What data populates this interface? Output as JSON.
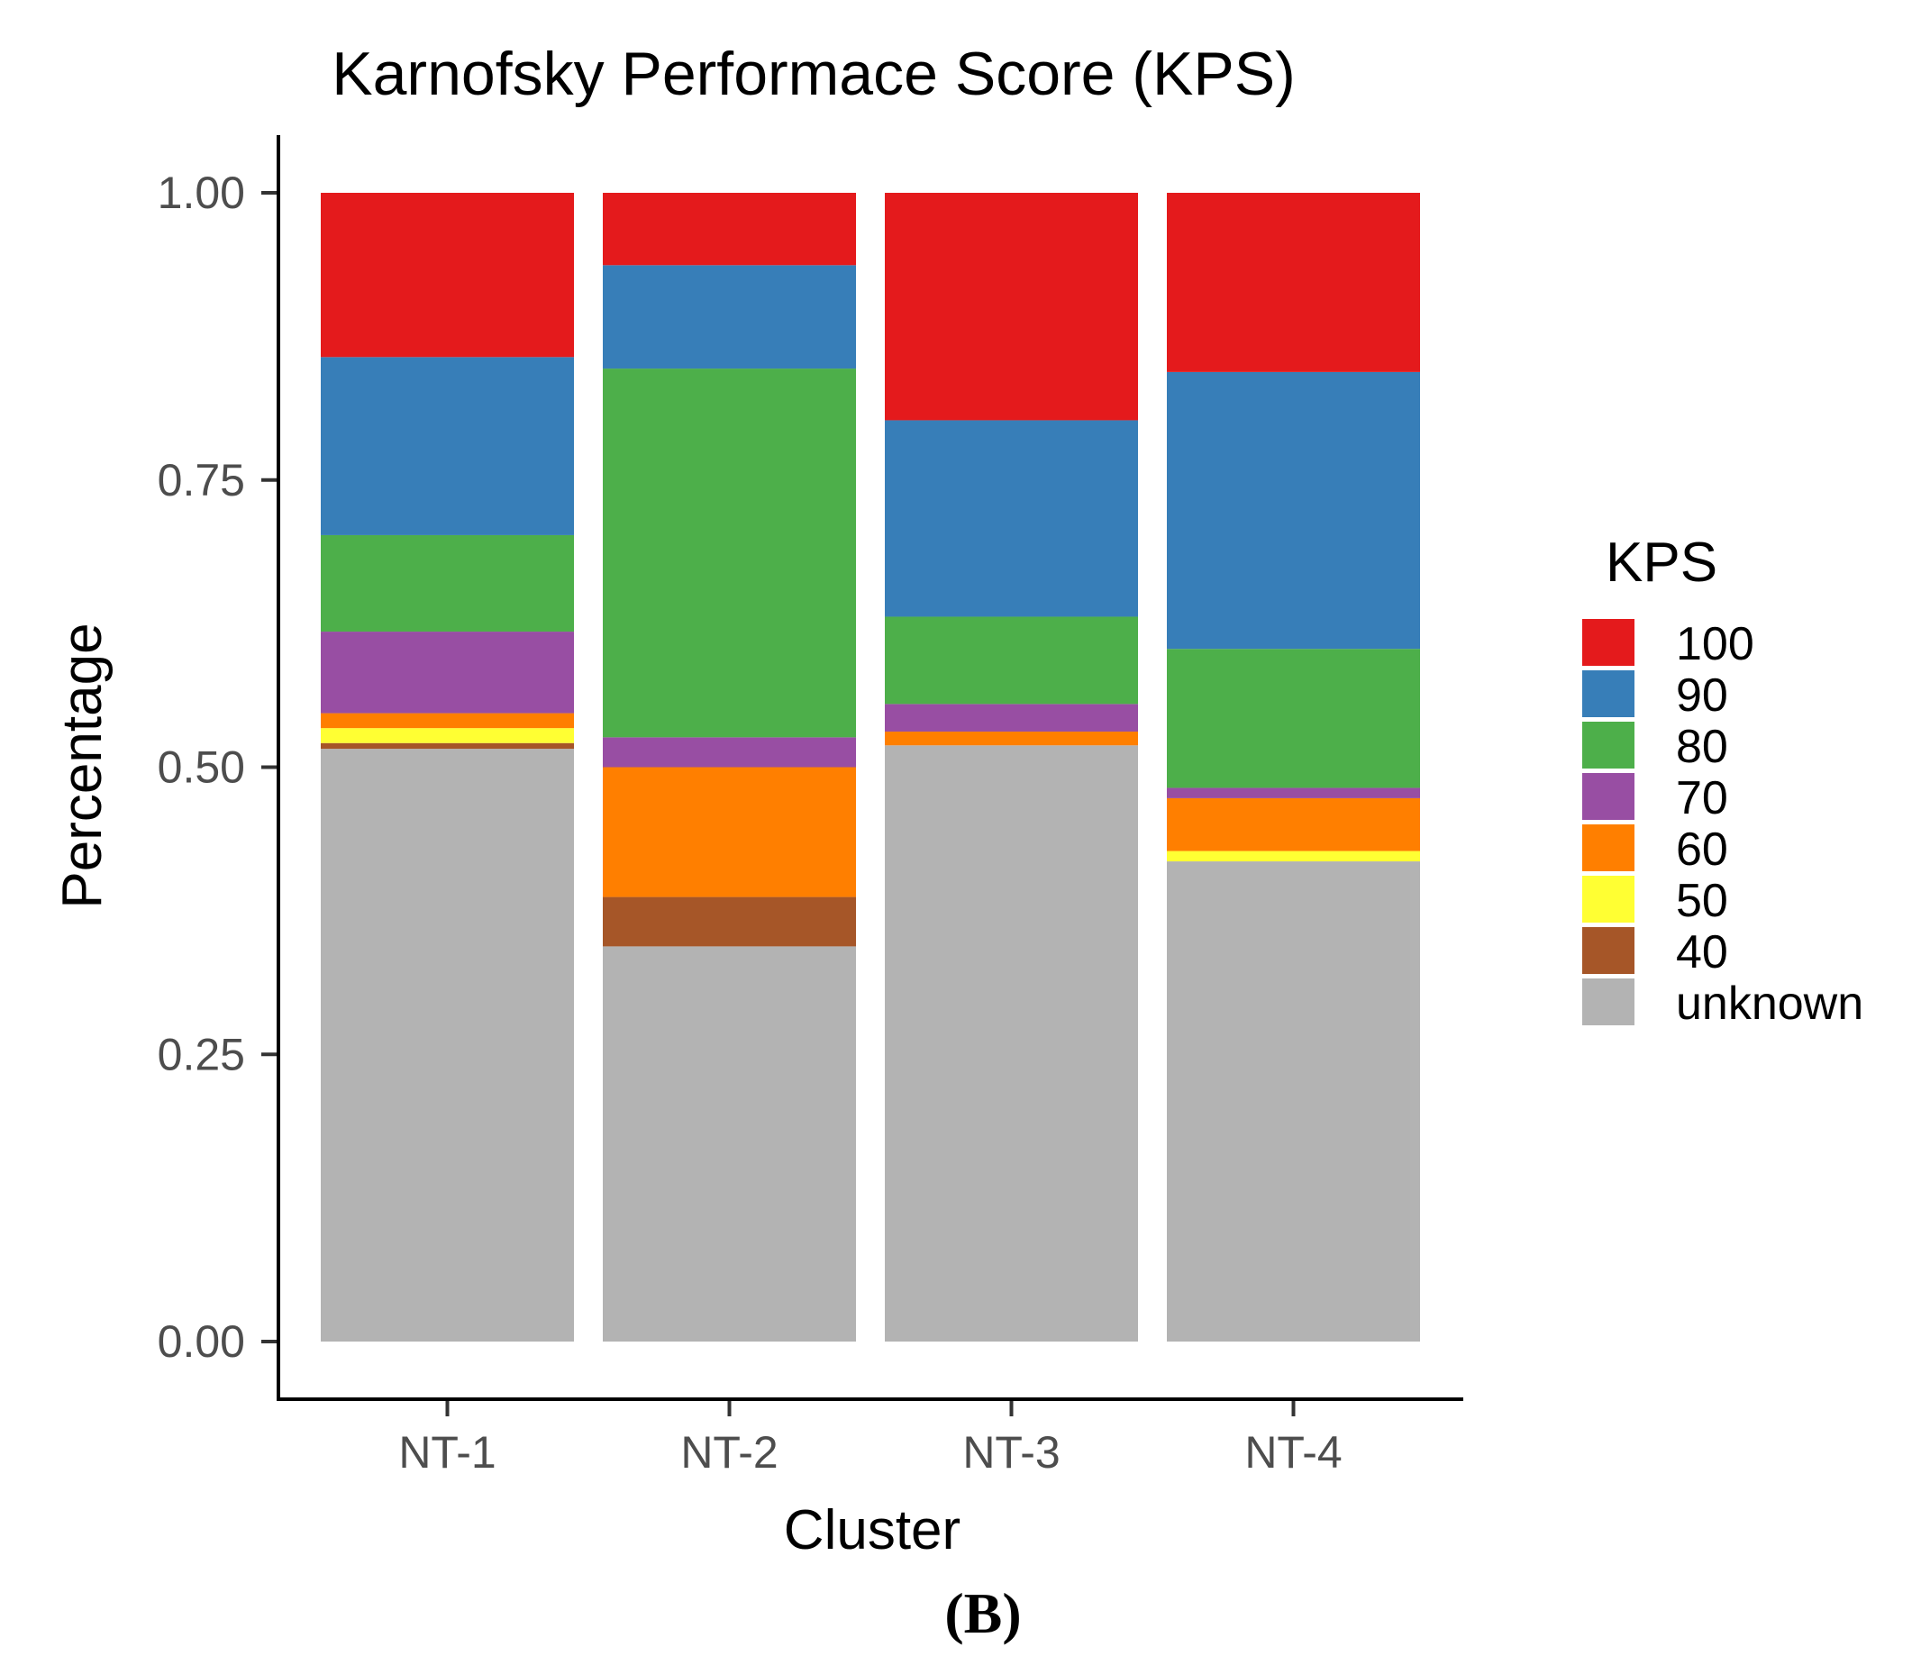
{
  "chart_data": {
    "type": "bar",
    "stacked": true,
    "title": "Karnofsky Performace Score (KPS)",
    "xlabel": "Cluster",
    "ylabel": "Percentage",
    "ylim": [
      0,
      1
    ],
    "yticks": [
      "0.00",
      "0.25",
      "0.50",
      "0.75",
      "1.00"
    ],
    "categories": [
      "NT-1",
      "NT-2",
      "NT-3",
      "NT-4"
    ],
    "legend_title": "KPS",
    "legend_position": "right",
    "series": [
      {
        "name": "unknown",
        "color": "#B3B3B3",
        "values": [
          0.516,
          0.344,
          0.519,
          0.418
        ]
      },
      {
        "name": "40",
        "color": "#A65628",
        "values": [
          0.005,
          0.043,
          0.0,
          0.0
        ]
      },
      {
        "name": "50",
        "color": "#FFFF33",
        "values": [
          0.013,
          0.0,
          0.0,
          0.009
        ]
      },
      {
        "name": "60",
        "color": "#FF7F00",
        "values": [
          0.013,
          0.113,
          0.012,
          0.046
        ]
      },
      {
        "name": "70",
        "color": "#984EA3",
        "values": [
          0.071,
          0.026,
          0.024,
          0.009
        ]
      },
      {
        "name": "80",
        "color": "#4DAF4A",
        "values": [
          0.084,
          0.321,
          0.076,
          0.121
        ]
      },
      {
        "name": "90",
        "color": "#377EB8",
        "values": [
          0.155,
          0.09,
          0.171,
          0.241
        ]
      },
      {
        "name": "100",
        "color": "#E41A1C",
        "values": [
          0.143,
          0.063,
          0.198,
          0.156
        ]
      }
    ]
  },
  "figure_label": "(B)"
}
